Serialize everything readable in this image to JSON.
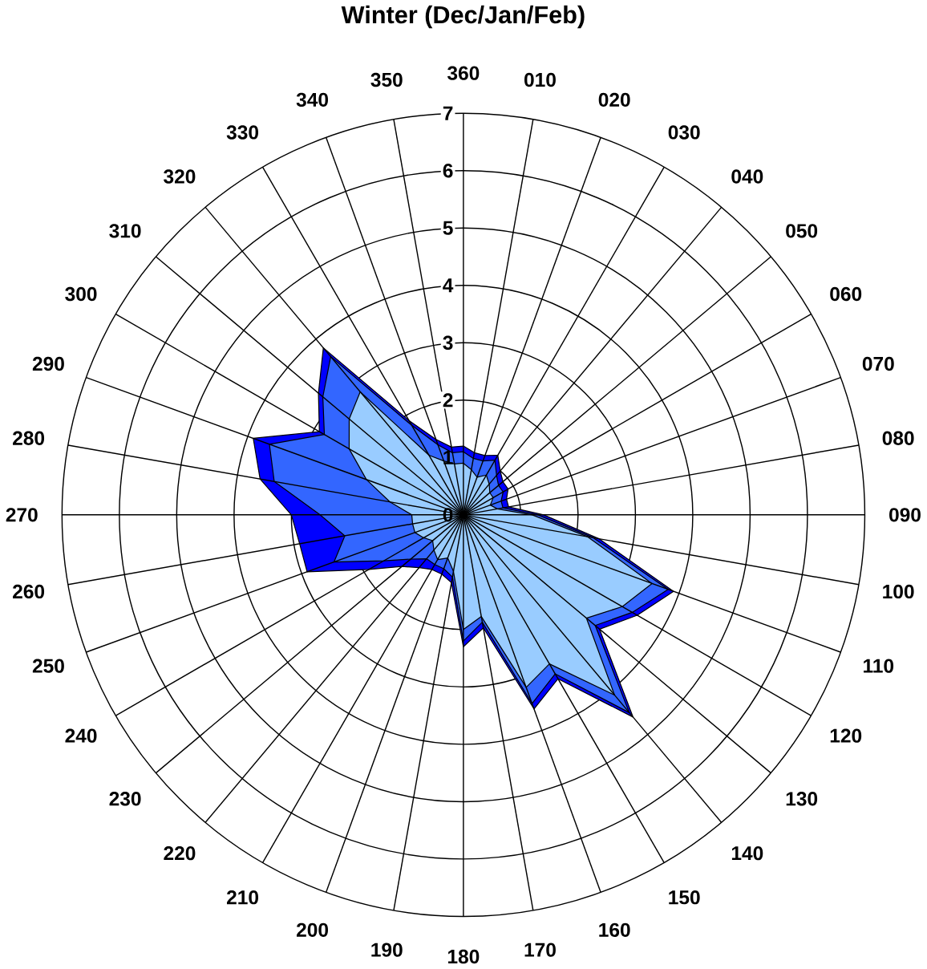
{
  "chart_data": {
    "type": "radar",
    "title": "Winter (Dec/Jan/Feb)",
    "categories": [
      "360",
      "010",
      "020",
      "030",
      "040",
      "050",
      "060",
      "070",
      "080",
      "090",
      "100",
      "110",
      "120",
      "130",
      "140",
      "150",
      "160",
      "170",
      "180",
      "190",
      "200",
      "210",
      "220",
      "230",
      "240",
      "250",
      "260",
      "270",
      "280",
      "290",
      "300",
      "310",
      "320",
      "330",
      "340",
      "350"
    ],
    "ylim": [
      0,
      7
    ],
    "yticks": [
      0,
      1,
      2,
      3,
      4,
      5,
      6,
      7
    ],
    "grid": true,
    "series": [
      {
        "color": "#0000ff",
        "values": [
          1.2,
          1.1,
          1.1,
          1.2,
          1.0,
          0.9,
          0.9,
          0.8,
          0.8,
          1.4,
          2.4,
          3.9,
          3.5,
          3.1,
          4.6,
          3.3,
          3.6,
          2.0,
          2.3,
          1.2,
          1.1,
          1.1,
          1.2,
          1.4,
          1.9,
          2.9,
          2.9,
          3.0,
          3.6,
          3.9,
          2.9,
          3.3,
          3.8,
          1.9,
          1.4,
          1.2
        ]
      },
      {
        "color": "#3366ff",
        "values": [
          1.1,
          1.0,
          1.0,
          1.1,
          0.9,
          0.8,
          0.8,
          0.7,
          0.7,
          1.3,
          2.3,
          3.8,
          3.4,
          3.0,
          4.5,
          3.2,
          3.5,
          1.9,
          2.2,
          1.1,
          1.0,
          1.0,
          1.0,
          1.2,
          1.6,
          2.4,
          2.1,
          2.5,
          3.35,
          3.6,
          2.8,
          3.2,
          3.6,
          1.8,
          1.3,
          1.1
        ]
      },
      {
        "color": "#99ccff",
        "values": [
          0.9,
          0.8,
          0.7,
          0.8,
          0.7,
          0.6,
          0.6,
          0.5,
          0.6,
          1.2,
          2.2,
          3.5,
          3.2,
          2.8,
          4.1,
          3.0,
          3.2,
          1.8,
          2.0,
          1.0,
          0.8,
          0.9,
          0.8,
          0.7,
          0.8,
          0.9,
          0.9,
          0.9,
          1.3,
          1.8,
          2.3,
          2.6,
          2.8,
          1.2,
          1.0,
          0.9
        ]
      }
    ]
  }
}
